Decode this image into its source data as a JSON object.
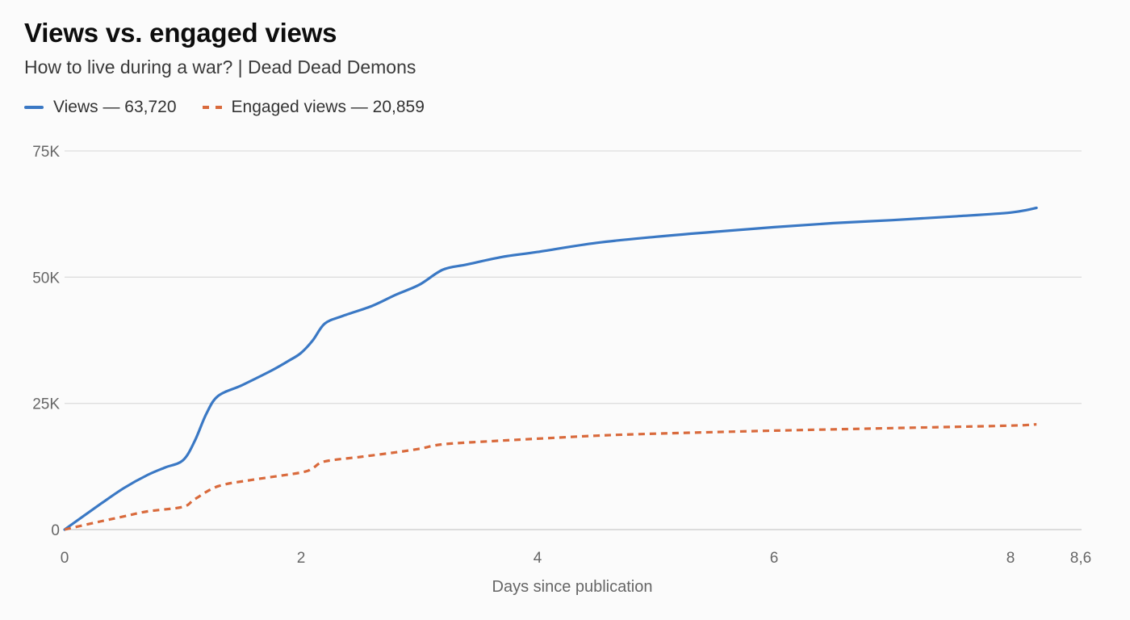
{
  "chart_data": {
    "type": "line",
    "title": "Views vs. engaged views",
    "subtitle": "How to live during a war? | Dead Dead Demons",
    "xlabel": "Days since publication",
    "ylabel": "",
    "xlim": [
      0,
      8.6
    ],
    "ylim": [
      0,
      75000
    ],
    "x_ticks": [
      0,
      2,
      4,
      6,
      8,
      8.6
    ],
    "x_tick_labels": [
      "0",
      "2",
      "4",
      "6",
      "8",
      "8,6"
    ],
    "y_ticks": [
      0,
      25000,
      50000,
      75000
    ],
    "y_tick_labels": [
      "0",
      "25K",
      "50K",
      "75K"
    ],
    "grid": true,
    "legend_position": "top-left",
    "series": [
      {
        "name": "Views",
        "legend_label": "Views — 63,720",
        "color": "#3a78c4",
        "style": "solid",
        "points": [
          [
            0,
            0
          ],
          [
            0.3,
            5000
          ],
          [
            0.5,
            8200
          ],
          [
            0.7,
            10800
          ],
          [
            0.85,
            12300
          ],
          [
            1.0,
            13700
          ],
          [
            1.1,
            17500
          ],
          [
            1.2,
            23000
          ],
          [
            1.3,
            26500
          ],
          [
            1.5,
            28600
          ],
          [
            1.75,
            31500
          ],
          [
            1.9,
            33500
          ],
          [
            2.0,
            35000
          ],
          [
            2.1,
            37500
          ],
          [
            2.2,
            40800
          ],
          [
            2.35,
            42300
          ],
          [
            2.6,
            44300
          ],
          [
            2.8,
            46500
          ],
          [
            3.0,
            48500
          ],
          [
            3.2,
            51500
          ],
          [
            3.4,
            52500
          ],
          [
            3.7,
            54000
          ],
          [
            4.0,
            55000
          ],
          [
            4.5,
            56800
          ],
          [
            5.0,
            58000
          ],
          [
            5.5,
            59000
          ],
          [
            6.0,
            59900
          ],
          [
            6.5,
            60700
          ],
          [
            7.0,
            61300
          ],
          [
            7.5,
            62000
          ],
          [
            8.0,
            62800
          ],
          [
            8.22,
            63720
          ]
        ]
      },
      {
        "name": "Engaged views",
        "legend_label": "Engaged views — 20,859",
        "color": "#d96a3c",
        "style": "dashed",
        "points": [
          [
            0,
            0
          ],
          [
            0.3,
            1600
          ],
          [
            0.5,
            2600
          ],
          [
            0.7,
            3600
          ],
          [
            1.0,
            4500
          ],
          [
            1.1,
            6000
          ],
          [
            1.3,
            8600
          ],
          [
            1.6,
            9900
          ],
          [
            2.0,
            11300
          ],
          [
            2.1,
            12200
          ],
          [
            2.2,
            13500
          ],
          [
            2.5,
            14400
          ],
          [
            2.8,
            15300
          ],
          [
            3.0,
            16000
          ],
          [
            3.2,
            16900
          ],
          [
            3.6,
            17500
          ],
          [
            4.0,
            18000
          ],
          [
            4.5,
            18600
          ],
          [
            5.0,
            19000
          ],
          [
            6.0,
            19600
          ],
          [
            7.0,
            20100
          ],
          [
            8.0,
            20600
          ],
          [
            8.22,
            20859
          ]
        ]
      }
    ]
  }
}
